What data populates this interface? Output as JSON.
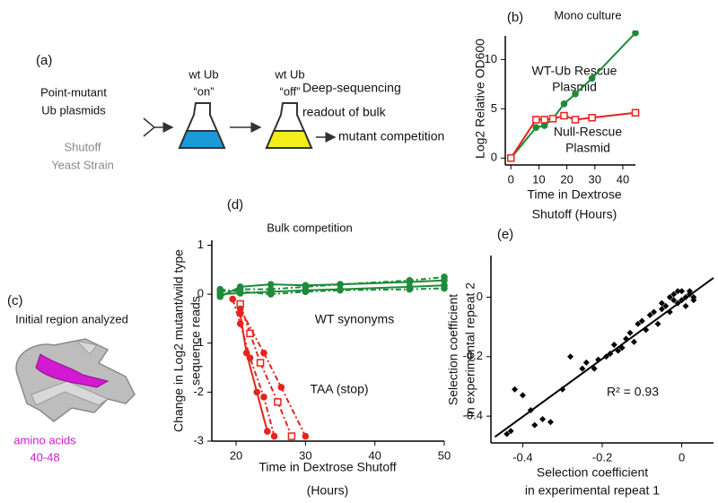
{
  "diagram": {
    "panel_a": {
      "label": "(a)",
      "source_lines": [
        "Point-mutant",
        "Ub plasmids"
      ],
      "strain_lines": [
        "Shutoff",
        "Yeast Strain"
      ],
      "flask1_lines": [
        "wt Ub",
        "“on”"
      ],
      "flask2_lines": [
        "wt Ub",
        "“off”"
      ],
      "readout_lines": [
        "Deep-sequencing",
        "readout of bulk",
        "mutant competition"
      ]
    },
    "panel_c": {
      "label": "(c)",
      "title": "Initial region analyzed",
      "region_lines": [
        "amino acids",
        "40-48"
      ]
    }
  },
  "chart_data": [
    {
      "type": "line",
      "label": "(b)",
      "title": "Mono culture",
      "xlabel": [
        "Time in Dextrose",
        "Shutoff (Hours)"
      ],
      "ylabel": [
        "Log2 Relative OD600"
      ],
      "xlim": [
        -2,
        44.5
      ],
      "xticks": [
        0,
        10,
        20,
        30,
        40
      ],
      "ylim": [
        -0.7,
        12.4
      ],
      "yticks": [
        0,
        5,
        10
      ],
      "series": [
        {
          "color": "#1e8a3a",
          "marker": "circle",
          "x": [
            0,
            9,
            12,
            15,
            19,
            23,
            29,
            44.5
          ],
          "values": [
            0,
            3.1,
            3.3,
            4,
            5.5,
            6.5,
            8.1,
            12.7
          ]
        },
        {
          "color": "#e8221c",
          "marker": "open-square",
          "x": [
            0,
            9,
            12,
            15,
            19,
            23,
            29,
            44.5
          ],
          "values": [
            0,
            3.9,
            3.9,
            4,
            4.3,
            3.9,
            4.1,
            4.6
          ]
        }
      ],
      "annotations": [
        {
          "color": "#1e8a3a",
          "lines": [
            "WT-Ub Rescue",
            "Plasmid"
          ]
        },
        {
          "color": "#e8221c",
          "lines": [
            "Null-Rescue",
            "Plasmid"
          ]
        }
      ]
    },
    {
      "type": "line",
      "label": "(d)",
      "title": "Bulk competition",
      "xlabel": [
        "Time in Dextrose Shutoff",
        "(Hours)"
      ],
      "ylabel": [
        "Change in Log2 mutant/wild type",
        "sequence reads"
      ],
      "xlim": [
        16.5,
        50
      ],
      "xticks": [
        20,
        30,
        40,
        50
      ],
      "ylim": [
        -3,
        1.1
      ],
      "yticks": [
        1,
        0,
        -1,
        -2,
        -3
      ],
      "series": [
        {
          "color": "#1e8a3a",
          "marker": "circle",
          "dash": true,
          "x": [
            17.7,
            20.6,
            25,
            30,
            35,
            45,
            50
          ],
          "values": [
            0.05,
            0.1,
            0.1,
            0.15,
            0.2,
            0.28,
            0.35
          ]
        },
        {
          "color": "#1e8a3a",
          "marker": "circle",
          "dash": false,
          "x": [
            17.7,
            20.6,
            25,
            30,
            35,
            45,
            50
          ],
          "values": [
            0,
            0.02,
            0.05,
            0.08,
            0.1,
            0.15,
            0.18
          ]
        },
        {
          "color": "#1e8a3a",
          "marker": "circle",
          "dash": true,
          "x": [
            17.7,
            20.6,
            25,
            30,
            35,
            45,
            50
          ],
          "values": [
            0.1,
            0.05,
            0,
            0.05,
            0.08,
            0.1,
            0.12
          ]
        },
        {
          "color": "#1e8a3a",
          "marker": "circle",
          "dash": false,
          "x": [
            17.7,
            20.6,
            25,
            30,
            35,
            45,
            50
          ],
          "values": [
            -0.05,
            0.15,
            0.2,
            0.18,
            0.2,
            0.25,
            0.28
          ]
        },
        {
          "color": "#e8221c",
          "marker": "circle",
          "dash": true,
          "x": [
            19.5,
            20.6,
            22,
            24,
            25.5
          ],
          "values": [
            -0.1,
            -0.6,
            -1.3,
            -2.1,
            -2.9
          ]
        },
        {
          "color": "#e8221c",
          "marker": "open-square",
          "dash": true,
          "x": [
            20.6,
            22,
            23.5,
            26,
            28
          ],
          "values": [
            -0.2,
            -0.8,
            -1.4,
            -2.2,
            -2.9
          ]
        },
        {
          "color": "#e8221c",
          "marker": "circle",
          "dash": false,
          "x": [
            20.6,
            21.5,
            23,
            24.5
          ],
          "values": [
            -0.4,
            -1.2,
            -2,
            -2.8
          ]
        },
        {
          "color": "#e8221c",
          "marker": "circle",
          "dash": true,
          "x": [
            20.6,
            24,
            26.5,
            30
          ],
          "values": [
            -0.3,
            -1.2,
            -1.9,
            -2.9
          ]
        }
      ],
      "annotations": [
        {
          "color": "#1e8a3a",
          "lines": [
            "WT synonyms"
          ]
        },
        {
          "color": "#e8221c",
          "lines": [
            "TAA (stop)"
          ]
        }
      ]
    },
    {
      "type": "scatter",
      "label": "(e)",
      "xlabel": [
        "Selection coefficient",
        "in experimental repeat 1"
      ],
      "ylabel": [
        "Selection coefficient",
        "in experimental repeat 2"
      ],
      "xlim": [
        -0.48,
        0.08
      ],
      "xticks": [
        -0.4,
        -0.2,
        0
      ],
      "ylim": [
        -0.49,
        0.14
      ],
      "yticks": [
        0,
        -0.2,
        -0.4
      ],
      "color": "#000000",
      "x": [
        -0.44,
        -0.43,
        -0.42,
        -0.4,
        -0.38,
        -0.37,
        -0.33,
        -0.3,
        -0.28,
        -0.25,
        -0.22,
        -0.21,
        -0.19,
        -0.18,
        -0.17,
        -0.15,
        -0.14,
        -0.13,
        -0.12,
        -0.11,
        -0.1,
        -0.09,
        -0.08,
        -0.07,
        -0.06,
        -0.05,
        -0.05,
        -0.04,
        -0.03,
        -0.03,
        -0.02,
        -0.02,
        -0.01,
        -0.01,
        0,
        0,
        0.01,
        0.01,
        0.02,
        0.02,
        0.03,
        0.03,
        -0.35,
        -0.24,
        -0.16
      ],
      "values": [
        -0.46,
        -0.45,
        -0.31,
        -0.33,
        -0.38,
        -0.43,
        -0.42,
        -0.31,
        -0.2,
        -0.24,
        -0.24,
        -0.21,
        -0.2,
        -0.19,
        -0.16,
        -0.17,
        -0.14,
        -0.12,
        -0.15,
        -0.09,
        -0.08,
        -0.11,
        -0.06,
        -0.05,
        -0.09,
        -0.04,
        -0.02,
        -0.03,
        0,
        -0.05,
        -0.01,
        0.01,
        -0.02,
        0.02,
        -0.01,
        0.02,
        0,
        -0.03,
        0.01,
        0.02,
        0,
        -0.01,
        -0.41,
        -0.22,
        -0.18
      ],
      "fit": {
        "x": [
          -0.47,
          0.08
        ],
        "values": [
          -0.47,
          0.065
        ]
      },
      "annotations": [
        {
          "color": "#111111",
          "lines": [
            "R² = 0.93"
          ]
        }
      ]
    }
  ]
}
